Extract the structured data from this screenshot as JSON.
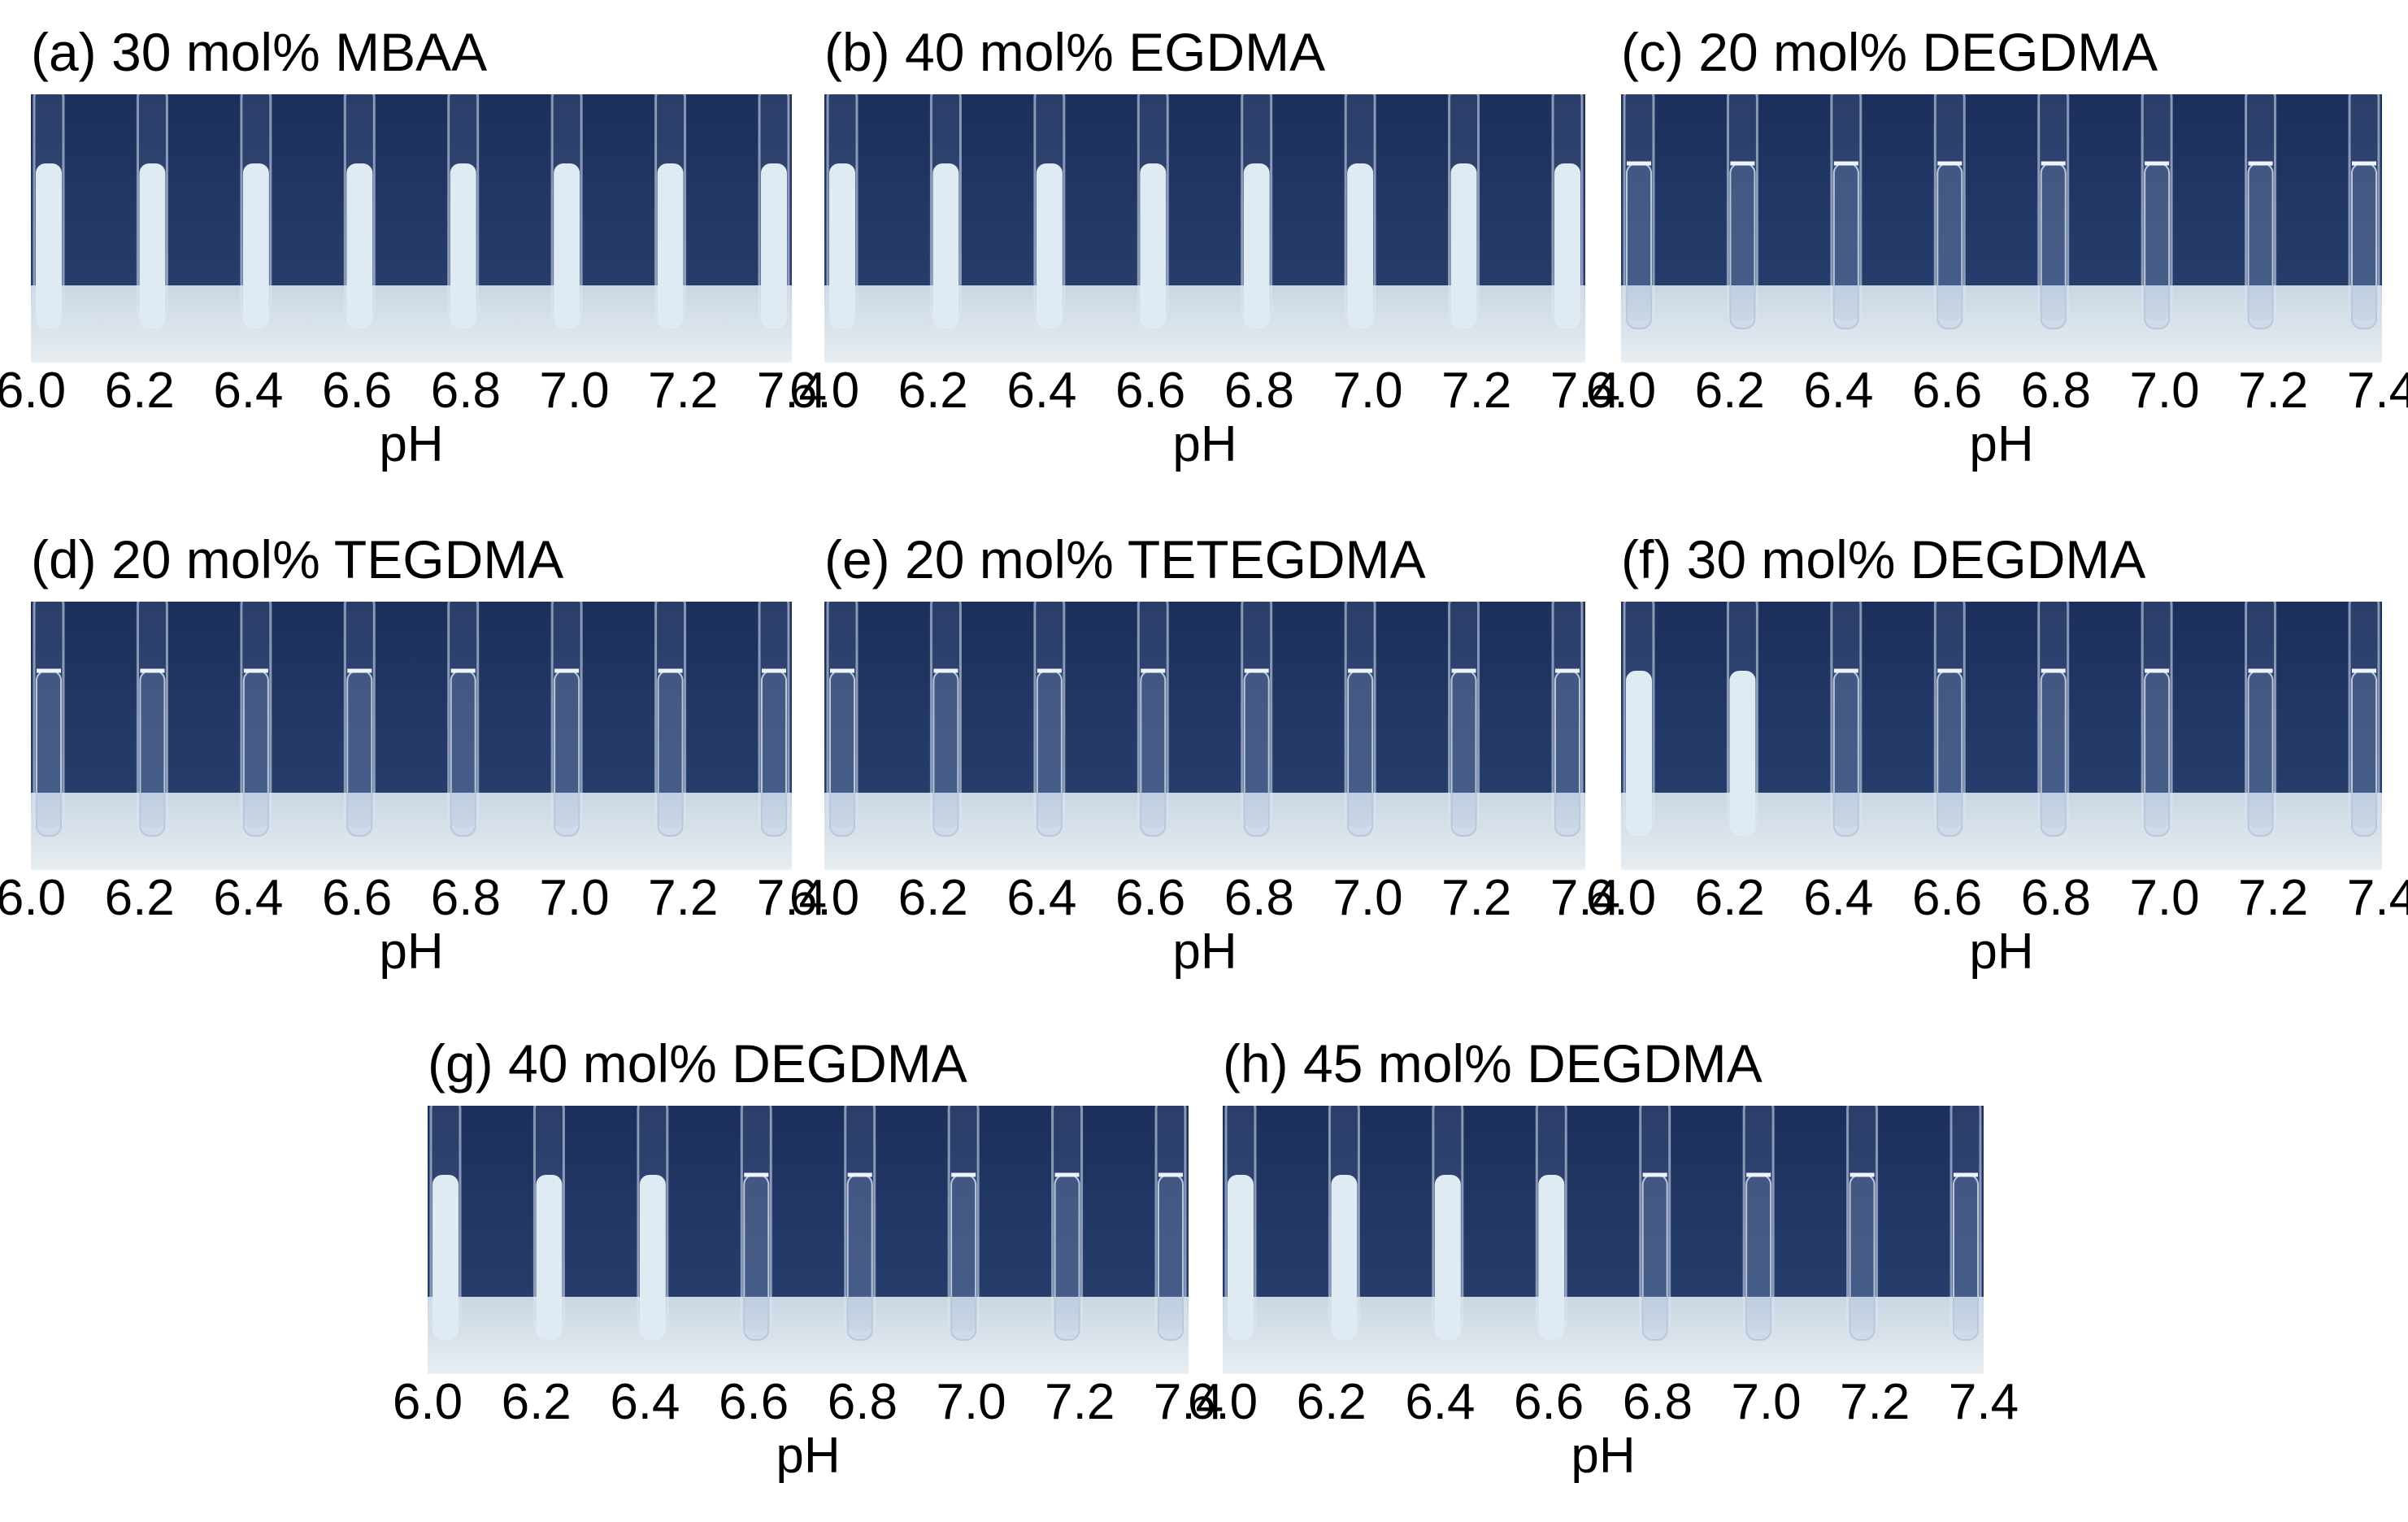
{
  "figure": {
    "axis_label": "pH",
    "ticks": [
      "6.0",
      "6.2",
      "6.4",
      "6.6",
      "6.8",
      "7.0",
      "7.2",
      "7.4"
    ],
    "colors": {
      "background_dark": "#1c2f5c",
      "background_mid": "#2a4373",
      "cloudy": "#dfeaf3",
      "clear": "#b9c8da",
      "rack": "#e8eef2"
    },
    "panels": [
      {
        "title": "(a) 30 mol% MBAA",
        "tubes": [
          "cloudy",
          "cloudy",
          "cloudy",
          "cloudy",
          "cloudy",
          "cloudy",
          "cloudy",
          "cloudy"
        ]
      },
      {
        "title": "(b) 40 mol% EGDMA",
        "tubes": [
          "cloudy",
          "cloudy",
          "cloudy",
          "cloudy",
          "cloudy",
          "cloudy",
          "cloudy",
          "cloudy"
        ]
      },
      {
        "title": "(c) 20 mol% DEGDMA",
        "tubes": [
          "clear",
          "clear",
          "clear",
          "clear",
          "clear",
          "clear",
          "clear",
          "clear"
        ]
      },
      {
        "title": "(d) 20 mol% TEGDMA",
        "tubes": [
          "clear",
          "clear",
          "clear",
          "clear",
          "clear",
          "clear",
          "clear",
          "clear"
        ]
      },
      {
        "title": "(e) 20 mol% TETEGDMA",
        "tubes": [
          "clear",
          "clear",
          "clear",
          "clear",
          "clear",
          "clear",
          "clear",
          "clear"
        ]
      },
      {
        "title": "(f) 30 mol% DEGDMA",
        "tubes": [
          "cloudy",
          "cloudy",
          "clear",
          "clear",
          "clear",
          "clear",
          "clear",
          "clear"
        ]
      },
      {
        "title": "(g) 40 mol% DEGDMA",
        "tubes": [
          "cloudy",
          "cloudy",
          "cloudy",
          "clear",
          "clear",
          "clear",
          "clear",
          "clear"
        ]
      },
      {
        "title": "(h) 45 mol% DEGDMA",
        "tubes": [
          "cloudy",
          "cloudy",
          "cloudy",
          "cloudy",
          "clear",
          "clear",
          "clear",
          "clear"
        ]
      }
    ]
  }
}
